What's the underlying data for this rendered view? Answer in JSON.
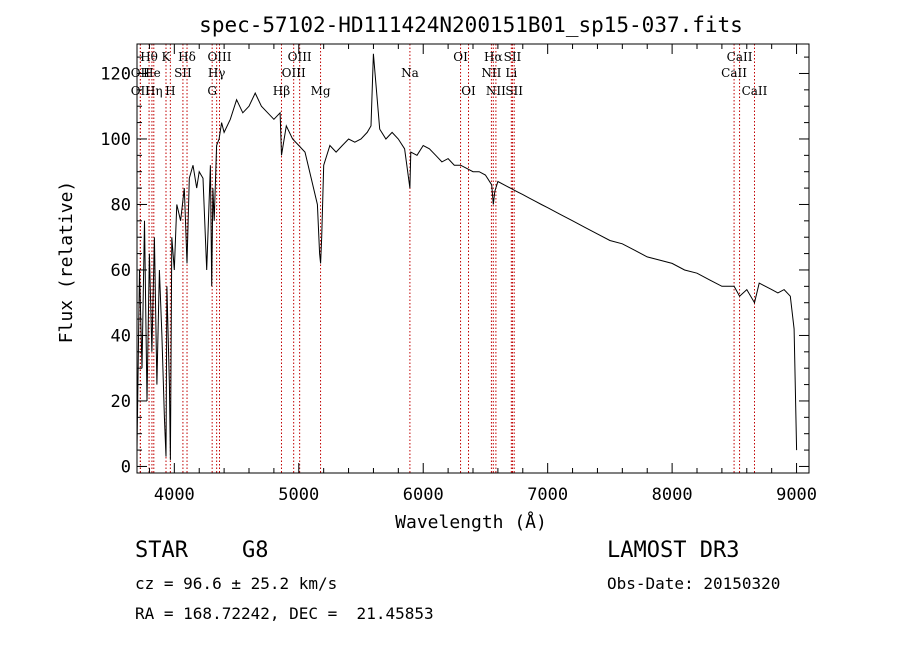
{
  "chart_data": {
    "type": "line",
    "title": "spec-57102-HD111424N200151B01_sp15-037.fits",
    "xlabel": "Wavelength (Å)",
    "ylabel": "Flux (relative)",
    "xlim": [
      3700,
      9100
    ],
    "ylim": [
      -2,
      129
    ],
    "xticks": [
      4000,
      5000,
      6000,
      7000,
      8000,
      9000
    ],
    "yticks": [
      0,
      20,
      40,
      60,
      80,
      100,
      120
    ],
    "grid": false,
    "line_color": "#000000",
    "marker_color": "#c00000",
    "series": [
      {
        "x": [
          3700,
          3720,
          3740,
          3760,
          3780,
          3800,
          3820,
          3840,
          3860,
          3880,
          3900,
          3920,
          3933,
          3940,
          3960,
          3968,
          3980,
          4000,
          4020,
          4050,
          4080,
          4102,
          4120,
          4150,
          4180,
          4200,
          4230,
          4260,
          4290,
          4300,
          4310,
          4320,
          4340,
          4360,
          4380,
          4400,
          4450,
          4500,
          4550,
          4600,
          4650,
          4700,
          4750,
          4800,
          4850,
          4861,
          4900,
          4950,
          5000,
          5050,
          5100,
          5150,
          5167,
          5175,
          5184,
          5200,
          5250,
          5300,
          5350,
          5400,
          5450,
          5500,
          5550,
          5580,
          5600,
          5650,
          5700,
          5750,
          5800,
          5850,
          5893,
          5900,
          5950,
          6000,
          6050,
          6100,
          6150,
          6200,
          6250,
          6300,
          6350,
          6400,
          6450,
          6500,
          6550,
          6563,
          6575,
          6600,
          6650,
          6700,
          6750,
          6800,
          6850,
          6900,
          6950,
          7000,
          7100,
          7200,
          7300,
          7400,
          7500,
          7600,
          7700,
          7800,
          7900,
          8000,
          8100,
          8200,
          8300,
          8400,
          8498,
          8542,
          8600,
          8662,
          8700,
          8750,
          8800,
          8850,
          8900,
          8950,
          8980,
          9000
        ],
        "y": [
          5,
          60,
          30,
          75,
          20,
          65,
          35,
          70,
          25,
          60,
          40,
          15,
          3,
          55,
          25,
          2,
          70,
          60,
          80,
          75,
          85,
          62,
          88,
          92,
          85,
          90,
          88,
          60,
          92,
          55,
          85,
          75,
          98,
          100,
          105,
          102,
          106,
          112,
          108,
          110,
          114,
          110,
          108,
          106,
          108,
          95,
          104,
          100,
          98,
          96,
          88,
          80,
          65,
          62,
          70,
          92,
          98,
          96,
          98,
          100,
          99,
          100,
          102,
          104,
          126,
          103,
          100,
          102,
          100,
          97,
          85,
          96,
          95,
          98,
          97,
          95,
          93,
          94,
          92,
          92,
          91,
          90,
          90,
          89,
          86,
          80,
          84,
          87,
          86,
          85,
          84,
          83,
          82,
          81,
          80,
          79,
          77,
          75,
          73,
          71,
          69,
          68,
          66,
          64,
          63,
          62,
          60,
          59,
          57,
          55,
          55,
          52,
          54,
          50,
          56,
          55,
          54,
          53,
          54,
          52,
          42,
          5
        ]
      }
    ],
    "lines": [
      {
        "name": "Hθ",
        "x": 3797,
        "row": 0
      },
      {
        "name": "OII",
        "x": 3727,
        "row": 1
      },
      {
        "name": "OII",
        "x": 3727,
        "row": 2
      },
      {
        "name": "He",
        "x": 3820,
        "row": 1
      },
      {
        "name": "Hη",
        "x": 3835,
        "row": 2
      },
      {
        "name": "K",
        "x": 3933,
        "row": 0
      },
      {
        "name": "SII",
        "x": 4069,
        "row": 1
      },
      {
        "name": "H",
        "x": 3968,
        "row": 2
      },
      {
        "name": "Hδ",
        "x": 4102,
        "row": 0
      },
      {
        "name": "OIII",
        "x": 4363,
        "row": 0
      },
      {
        "name": "Hγ",
        "x": 4340,
        "row": 1
      },
      {
        "name": "G",
        "x": 4304,
        "row": 2
      },
      {
        "name": "Hβ",
        "x": 4861,
        "row": 2
      },
      {
        "name": "OIII",
        "x": 5007,
        "row": 0
      },
      {
        "name": "OIII",
        "x": 4959,
        "row": 1
      },
      {
        "name": "Mg",
        "x": 5175,
        "row": 2
      },
      {
        "name": "Na",
        "x": 5893,
        "row": 1
      },
      {
        "name": "OI",
        "x": 6300,
        "row": 0
      },
      {
        "name": "OI",
        "x": 6364,
        "row": 2
      },
      {
        "name": "Hα",
        "x": 6563,
        "row": 0
      },
      {
        "name": "NII",
        "x": 6548,
        "row": 1
      },
      {
        "name": "NII",
        "x": 6584,
        "row": 2
      },
      {
        "name": "SII",
        "x": 6717,
        "row": 0
      },
      {
        "name": "Li",
        "x": 6708,
        "row": 1
      },
      {
        "name": "SII",
        "x": 6731,
        "row": 2
      },
      {
        "name": "CaII",
        "x": 8498,
        "row": 1
      },
      {
        "name": "CaII",
        "x": 8542,
        "row": 0
      },
      {
        "name": "CaII",
        "x": 8662,
        "row": 2
      }
    ]
  },
  "info": {
    "object_class": "STAR",
    "subclass": "G8",
    "survey": "LAMOST DR3",
    "cz": "cz = 96.6 ± 25.2 km/s",
    "obs_date": "Obs-Date: 20150320",
    "coords": "RA = 168.72242, DEC =  21.45853"
  }
}
